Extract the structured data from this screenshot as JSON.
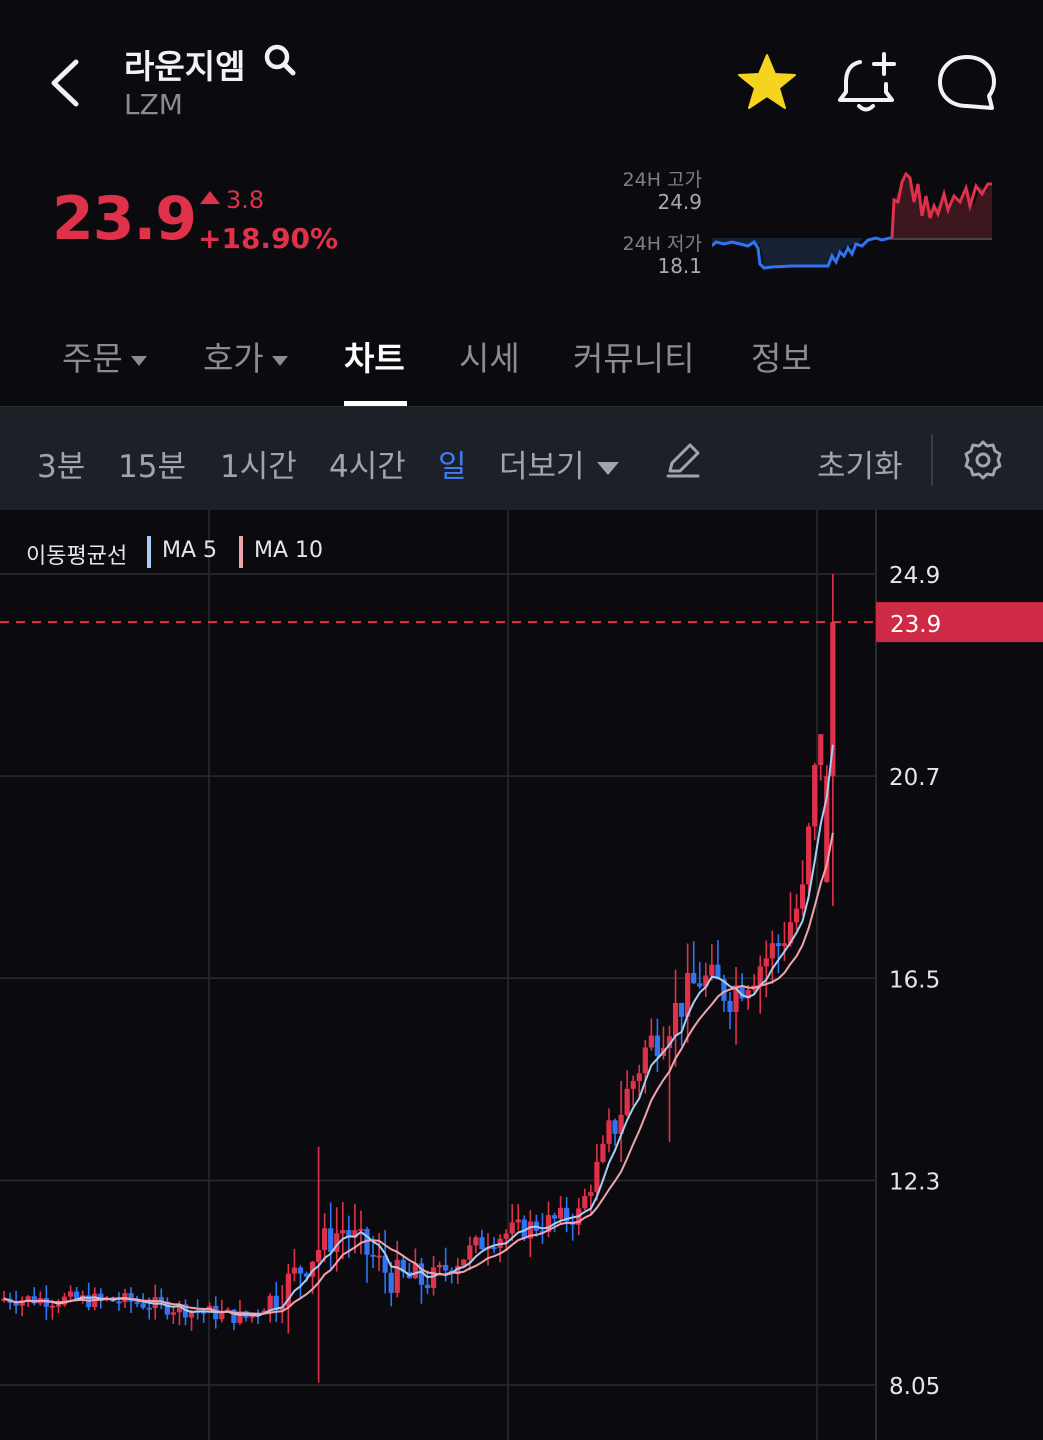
{
  "header": {
    "coin_name": "라운지엠",
    "symbol": "LZM"
  },
  "price": {
    "current": "23.9",
    "change": "3.8",
    "change_percent": "+18.90%",
    "high_label": "24H 고가",
    "high_value": "24.9",
    "low_label": "24H 저가",
    "low_value": "18.1"
  },
  "tabs": [
    {
      "label": "주문",
      "dropdown": true
    },
    {
      "label": "호가",
      "dropdown": true
    },
    {
      "label": "차트",
      "active": true
    },
    {
      "label": "시세"
    },
    {
      "label": "커뮤니티"
    },
    {
      "label": "정보"
    }
  ],
  "toolbar": {
    "intervals": [
      "3분",
      "15분",
      "1시간",
      "4시간",
      "일"
    ],
    "active_interval": "일",
    "more_label": "더보기",
    "reset_label": "초기화"
  },
  "legend": {
    "title": "이동평균선",
    "ma5": "MA 5",
    "ma10": "MA 10"
  },
  "colors": {
    "up": "#e0314b",
    "down": "#2f74f2",
    "ma5": "#a9cdf2",
    "ma10": "#f0a5ad",
    "star": "#f4d41d",
    "accent": "#3d7cf0"
  },
  "icons": [
    "chevron-left-icon",
    "search-icon",
    "star-icon",
    "bell-plus-icon",
    "chat-icon",
    "caret-down-icon",
    "pencil-icon",
    "gear-icon"
  ],
  "chart_data": {
    "type": "candlestick",
    "y_ticks": [
      "24.9",
      "20.7",
      "16.5",
      "12.3",
      "8.05"
    ],
    "current_price_label": "23.9",
    "ylim": [
      8.05,
      24.9
    ],
    "grid": true,
    "series_names": [
      "MA 5",
      "MA 10"
    ]
  }
}
